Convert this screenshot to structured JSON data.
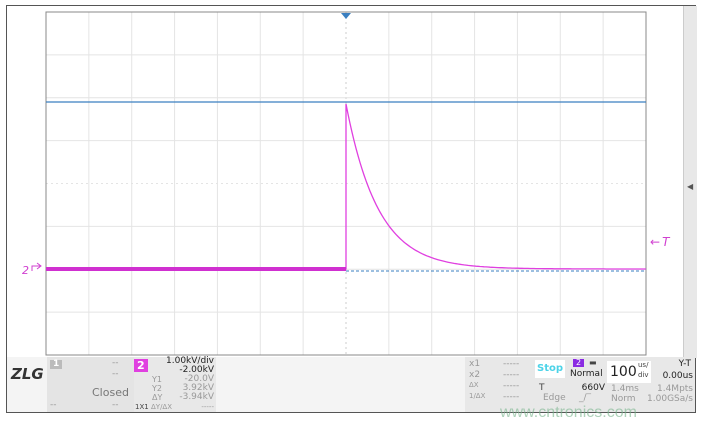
{
  "colors": {
    "trace": "#e040e0",
    "reference": "#3a7fc0",
    "grid": "#dddddd"
  },
  "screen": {
    "channel_marker": "2",
    "trigger_marker": "T",
    "trigger_arrow_icon": "arrow-left-icon",
    "right_panel_icon": "triangle-left-icon"
  },
  "chart_data": {
    "type": "line",
    "x_divisions": 14,
    "y_divisions": 8,
    "grid": true,
    "description_values": {
      "baseline_div": -2.0,
      "peak_div": 3.92
    },
    "series": [
      {
        "values": "step at trigger to ~3.92kV then exponential decay back to ~-20V"
      }
    ]
  },
  "channel1": {
    "number": "1",
    "v1": "--",
    "v2": "--",
    "state": "Closed",
    "v3": "--",
    "v4": "--"
  },
  "channel2": {
    "number": "2",
    "scale": "1.00kV/div",
    "offset": "-2.00kV",
    "y1_label": "Y1",
    "y1": "-20.0V",
    "y2_label": "Y2",
    "y2": "3.92kV",
    "dy_label": "ΔY",
    "dy": "-3.94kV",
    "probe": "1X1",
    "ratio": "ΔY/ΔX",
    "ratio_val": "-----"
  },
  "logo": "ZLG",
  "cursors": {
    "x1_label": "x1",
    "x1": "-----",
    "x2_label": "x2",
    "x2": "-----",
    "dx_label": "ΔX",
    "dx": "-----",
    "inv_label": "1/ΔX",
    "inv": "-----"
  },
  "trigger": {
    "status": "Stop",
    "channel": "2",
    "mode": "Normal",
    "type_label": "T",
    "level": "660V",
    "edge_label": "Edge"
  },
  "timebase": {
    "value": "100",
    "unit_top": "us/",
    "unit_bottom": "div",
    "mode": "Y-T",
    "delay": "0.00us",
    "record": "1.4ms",
    "points": "1.4Mpts",
    "acq": "Norm",
    "rate": "1.00GSa/s"
  },
  "watermark": "www.cntronics.com"
}
